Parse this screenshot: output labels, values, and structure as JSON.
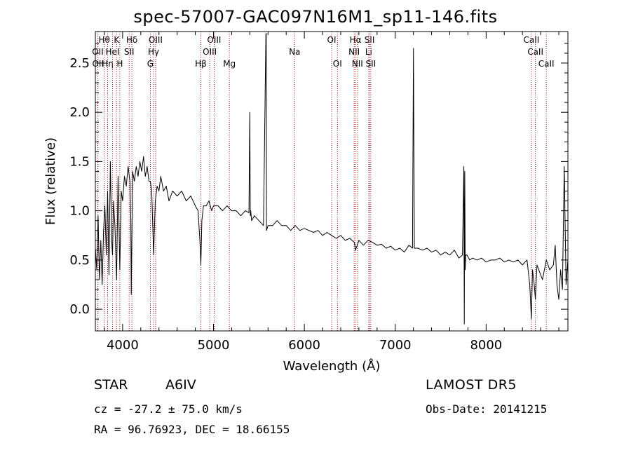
{
  "header": {
    "title": "spec-57007-GAC097N16M1_sp11-146.fits"
  },
  "info": {
    "object_type": "STAR",
    "subclass": "A6IV",
    "survey": "LAMOST DR5",
    "cz_line": "cz = -27.2 ± 75.0 km/s",
    "obs_date": "Obs-Date: 20141215",
    "radec": "RA =  96.76923, DEC =  18.66155"
  },
  "chart_data": {
    "type": "line",
    "title": "spec-57007-GAC097N16M1_sp11-146.fits",
    "xlabel": "Wavelength (Å)",
    "ylabel": "Flux (relative)",
    "xlim": [
      3700,
      8900
    ],
    "ylim": [
      -0.22,
      2.82
    ],
    "xticks": [
      4000,
      5000,
      6000,
      7000,
      8000
    ],
    "xtick_labels": [
      "4000",
      "5000",
      "6000",
      "7000",
      "8000"
    ],
    "yticks": [
      0.0,
      0.5,
      1.0,
      1.5,
      2.0,
      2.5
    ],
    "ytick_labels": [
      "0.0",
      "0.5",
      "1.0",
      "1.5",
      "2.0",
      "2.5"
    ],
    "grid": false,
    "line_color": "#000000",
    "marker_line_color": "#a01010",
    "line_markers": [
      {
        "label": "Hθ",
        "wavelength": 3798,
        "row": 0
      },
      {
        "label": "OII",
        "wavelength": 3727,
        "row": 1
      },
      {
        "label": "OII",
        "wavelength": 3729,
        "row": 2
      },
      {
        "label": "Hη",
        "wavelength": 3835,
        "row": 2
      },
      {
        "label": "HeI",
        "wavelength": 3889,
        "row": 1
      },
      {
        "label": "K",
        "wavelength": 3934,
        "row": 0
      },
      {
        "label": "H",
        "wavelength": 3969,
        "row": 2
      },
      {
        "label": "Hδ",
        "wavelength": 4102,
        "row": 0
      },
      {
        "label": "SII",
        "wavelength": 4072,
        "row": 1
      },
      {
        "label": "OIII",
        "wavelength": 4363,
        "row": 0
      },
      {
        "label": "Hγ",
        "wavelength": 4341,
        "row": 1
      },
      {
        "label": "G",
        "wavelength": 4305,
        "row": 2
      },
      {
        "label": "Hβ",
        "wavelength": 4861,
        "row": 2
      },
      {
        "label": "OIII",
        "wavelength": 5007,
        "row": 0
      },
      {
        "label": "OIII",
        "wavelength": 4959,
        "row": 1
      },
      {
        "label": "Mg",
        "wavelength": 5175,
        "row": 2
      },
      {
        "label": "Na",
        "wavelength": 5893,
        "row": 1
      },
      {
        "label": "OI",
        "wavelength": 6300,
        "row": 0
      },
      {
        "label": "OI",
        "wavelength": 6364,
        "row": 2
      },
      {
        "label": "Hα",
        "wavelength": 6563,
        "row": 0
      },
      {
        "label": "NII",
        "wavelength": 6548,
        "row": 1
      },
      {
        "label": "NII",
        "wavelength": 6584,
        "row": 2
      },
      {
        "label": "SII",
        "wavelength": 6717,
        "row": 0
      },
      {
        "label": "Li",
        "wavelength": 6708,
        "row": 1
      },
      {
        "label": "SII",
        "wavelength": 6731,
        "row": 2
      },
      {
        "label": "CaII",
        "wavelength": 8498,
        "row": 0
      },
      {
        "label": "CaII",
        "wavelength": 8542,
        "row": 1
      },
      {
        "label": "CaII",
        "wavelength": 8662,
        "row": 2
      }
    ],
    "series": [
      {
        "x": [
          3700,
          3715,
          3730,
          3745,
          3760,
          3775,
          3790,
          3805,
          3820,
          3835,
          3850,
          3865,
          3880,
          3889,
          3900,
          3915,
          3934,
          3950,
          3969,
          3985,
          4000,
          4020,
          4040,
          4060,
          4080,
          4090,
          4095,
          4102,
          4110,
          4130,
          4150,
          4170,
          4190,
          4210,
          4230,
          4250,
          4270,
          4290,
          4305,
          4320,
          4341,
          4360,
          4380,
          4400,
          4420,
          4450,
          4480,
          4510,
          4550,
          4600,
          4650,
          4700,
          4750,
          4800,
          4830,
          4850,
          4861,
          4872,
          4890,
          4920,
          4950,
          4980,
          5000,
          5050,
          5100,
          5150,
          5200,
          5250,
          5300,
          5350,
          5390,
          5400,
          5405,
          5410,
          5420,
          5450,
          5500,
          5550,
          5577,
          5580,
          5583,
          5600,
          5650,
          5700,
          5750,
          5800,
          5850,
          5900,
          5950,
          6000,
          6050,
          6100,
          6150,
          6200,
          6250,
          6300,
          6350,
          6400,
          6450,
          6500,
          6550,
          6563,
          6600,
          6650,
          6700,
          6750,
          6800,
          6850,
          6900,
          6950,
          7000,
          7050,
          7100,
          7150,
          7190,
          7200,
          7210,
          7250,
          7300,
          7350,
          7400,
          7450,
          7500,
          7550,
          7600,
          7650,
          7700,
          7740,
          7755,
          7760,
          7765,
          7770,
          7775,
          7790,
          7820,
          7850,
          7900,
          7950,
          8000,
          8050,
          8100,
          8150,
          8200,
          8250,
          8300,
          8350,
          8400,
          8450,
          8480,
          8498,
          8510,
          8530,
          8542,
          8560,
          8600,
          8620,
          8662,
          8700,
          8740,
          8760,
          8780,
          8800,
          8820,
          8840,
          8860,
          8880,
          8900
        ],
        "y": [
          0.62,
          0.41,
          0.95,
          0.3,
          0.7,
          0.25,
          0.8,
          1.05,
          0.55,
          1.2,
          0.35,
          1.5,
          0.7,
          0.55,
          1.1,
          0.85,
          0.3,
          1.35,
          0.4,
          1.2,
          1.1,
          1.35,
          1.25,
          1.45,
          1.3,
          0.9,
          0.15,
          0.7,
          1.4,
          1.3,
          1.45,
          1.35,
          1.5,
          1.4,
          1.55,
          1.35,
          1.45,
          1.3,
          1.3,
          1.2,
          0.55,
          1.1,
          1.25,
          1.2,
          1.35,
          1.2,
          1.25,
          1.1,
          1.2,
          1.15,
          1.2,
          1.1,
          1.15,
          1.05,
          1.0,
          0.7,
          0.45,
          0.9,
          1.05,
          1.05,
          1.1,
          1.0,
          1.05,
          1.05,
          1.0,
          1.05,
          1.0,
          1.0,
          0.95,
          1.0,
          0.98,
          2.0,
          0.95,
          1.0,
          0.9,
          0.95,
          0.9,
          0.85,
          2.8,
          2.8,
          0.8,
          0.85,
          0.85,
          0.9,
          0.85,
          0.85,
          0.8,
          0.85,
          0.8,
          0.82,
          0.8,
          0.78,
          0.8,
          0.75,
          0.78,
          0.75,
          0.72,
          0.75,
          0.7,
          0.72,
          0.68,
          0.6,
          0.7,
          0.65,
          0.7,
          0.68,
          0.65,
          0.66,
          0.62,
          0.64,
          0.6,
          0.62,
          0.58,
          0.65,
          0.62,
          2.65,
          0.62,
          0.62,
          0.6,
          0.62,
          0.58,
          0.6,
          0.55,
          0.58,
          0.55,
          0.6,
          0.52,
          0.55,
          1.45,
          -0.15,
          1.4,
          0.4,
          0.55,
          0.55,
          0.5,
          0.52,
          0.5,
          0.52,
          0.48,
          0.5,
          0.5,
          0.52,
          0.48,
          0.5,
          0.48,
          0.5,
          0.45,
          0.5,
          0.25,
          -0.1,
          0.4,
          0.25,
          0.1,
          0.45,
          0.35,
          0.3,
          0.5,
          0.4,
          0.45,
          0.65,
          0.25,
          0.1,
          0.4,
          0.2,
          1.45,
          0.25,
          0.5
        ]
      }
    ]
  }
}
